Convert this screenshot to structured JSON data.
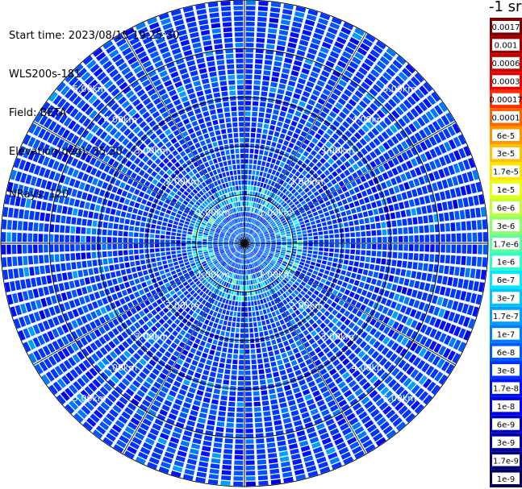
{
  "info": {
    "start_time": "Start time: 2023/08/15 19:25:30",
    "instrument": "WLS200s-181",
    "field": "Field: BETA",
    "elevation": "Elevation(deg): 35.30",
    "nrays": "NRays: 120"
  },
  "colorbar": {
    "title": "-1 sr",
    "labels": [
      "0.0017",
      "0.001",
      "0.0006",
      "0.0003",
      "0.00017",
      "0.0001",
      "6e-5",
      "3e-5",
      "1.7e-5",
      "1e-5",
      "6e-6",
      "3e-6",
      "1.7e-6",
      "1e-6",
      "6e-7",
      "3e-7",
      "1.7e-7",
      "1e-7",
      "6e-8",
      "3e-8",
      "1.7e-8",
      "1e-8",
      "6e-9",
      "3e-9",
      "1.7e-9",
      "1e-9"
    ],
    "colors": [
      "#7a0000",
      "#a00000",
      "#c80000",
      "#ea0000",
      "#ff2a00",
      "#ff6400",
      "#ff9600",
      "#ffc000",
      "#ffe400",
      "#e8ff10",
      "#c0ff36",
      "#8eff68",
      "#5cff9a",
      "#2cffcc",
      "#00e8ff",
      "#00c4ff",
      "#00a0ff",
      "#007cff",
      "#0058ff",
      "#0034ff",
      "#0010ff",
      "#0000e6",
      "#0000c0",
      "#00009e",
      "#00007c",
      "#000060"
    ]
  },
  "chart_data": {
    "type": "heatmap",
    "projection": "polar (PPI scan, north up)",
    "range_rings_km": [
      1,
      2,
      3,
      4,
      5
    ],
    "ring_labels": [
      "1.00km",
      "2.00km",
      "3.00km",
      "4.00km",
      "5.00km"
    ],
    "ring_label_bearings_deg": [
      45,
      135,
      225,
      315
    ],
    "max_range_km": 5,
    "n_rays": 120,
    "spoke_interval_deg": 30,
    "field": "BETA",
    "units": "m-1 sr-1",
    "color_scale": "log",
    "value_range": [
      1e-09,
      0.0017
    ],
    "background_level": "1e-8 to 1e-7",
    "enhanced_aerosol_band": {
      "range_km": [
        0.6,
        1.2
      ],
      "level": "3e-7 to 3e-6"
    }
  }
}
